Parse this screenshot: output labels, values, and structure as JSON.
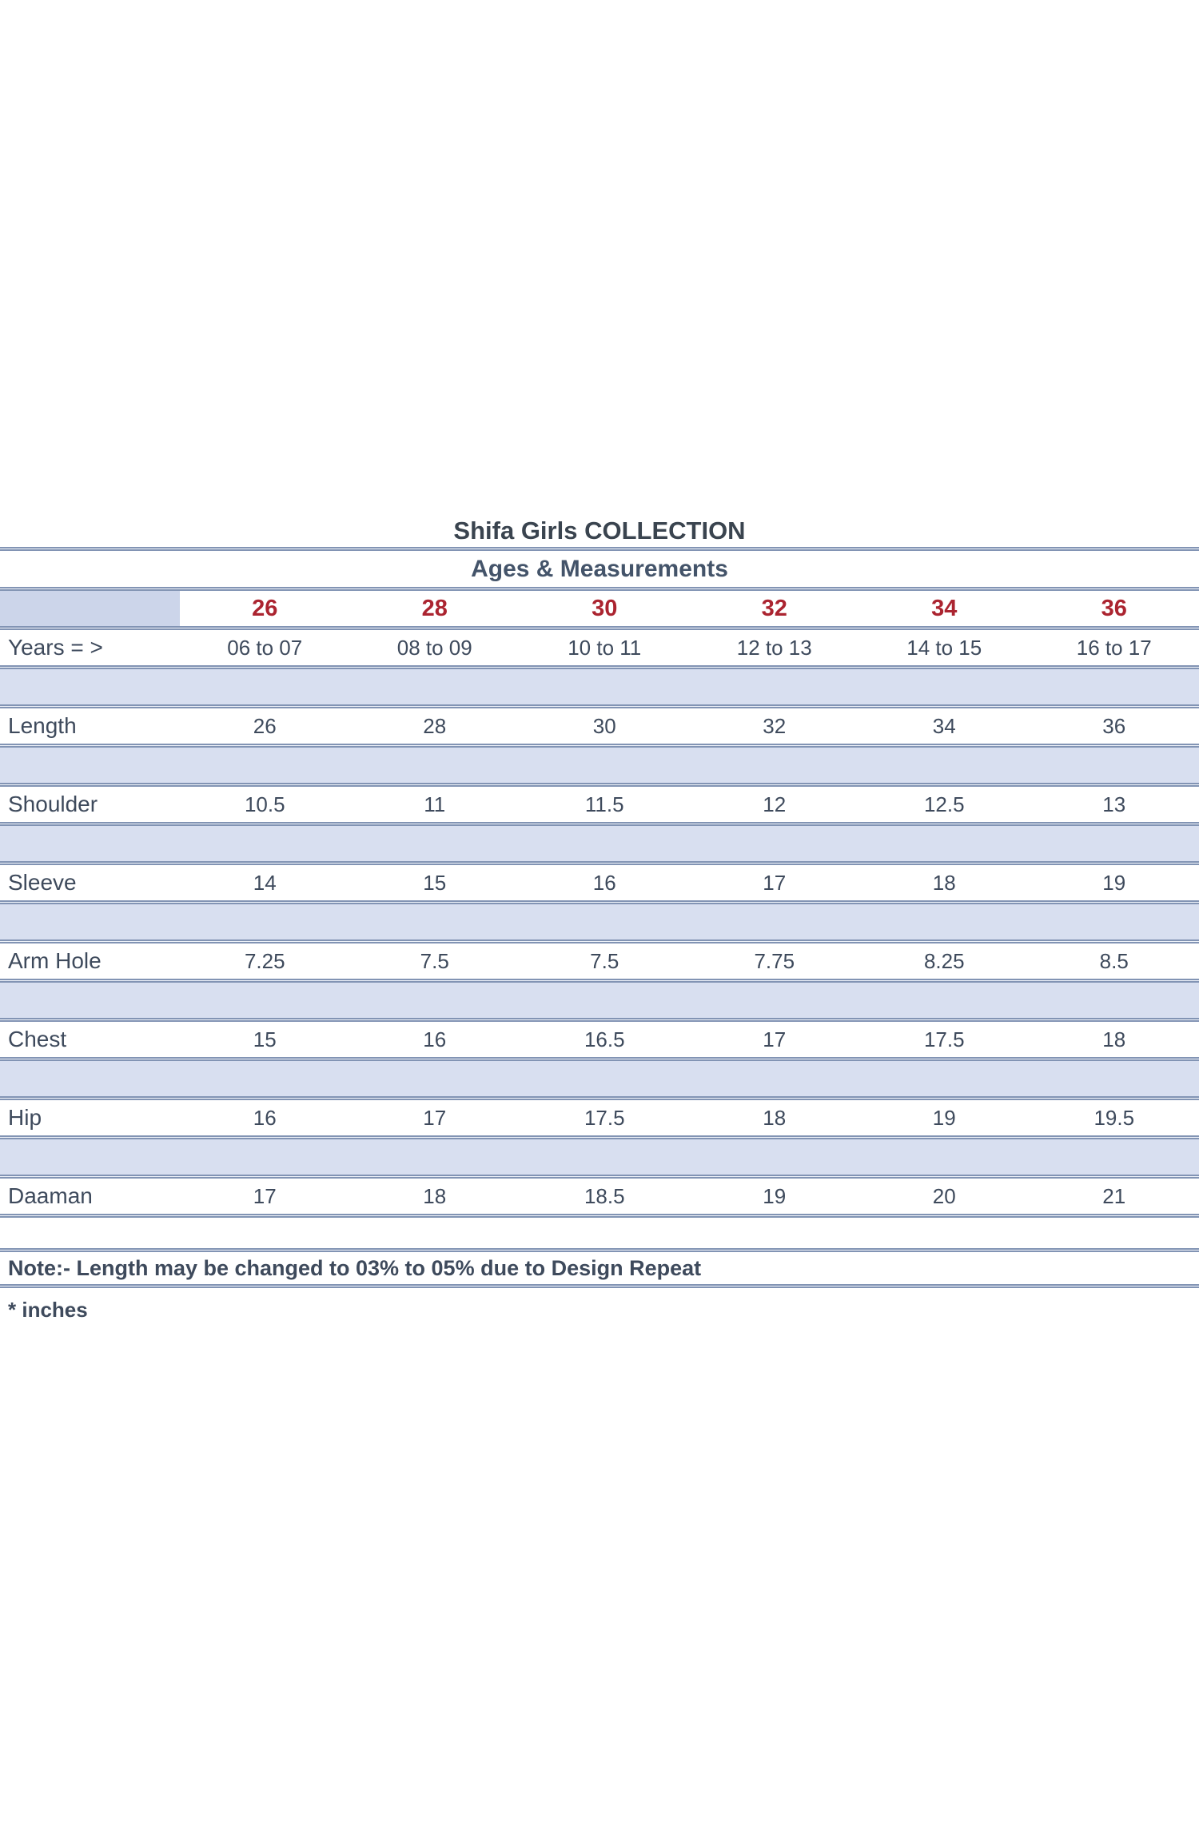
{
  "page": {
    "title": "Shifa Girls COLLECTION",
    "section_header": "Ages & Measurements",
    "note": "Note:- Length may be changed to 03% to 05% due to Design Repeat",
    "footnote": "* inches"
  },
  "colors": {
    "size_header_red": "#ab2430",
    "spacer_band_blue": "#d8dff0",
    "corner_cell_blue": "#ccd5ea",
    "rule_slate": "#8294b4",
    "text_dark_slate": "#3e4a5c",
    "section_header_blue_gray": "#44546a"
  },
  "table": {
    "sizes": [
      "26",
      "28",
      "30",
      "32",
      "34",
      "36"
    ],
    "years_label": "Years = >",
    "years": [
      "06 to 07",
      "08 to 09",
      "10 to 11",
      "12 to 13",
      "14 to 15",
      "16 to 17"
    ],
    "rows": [
      {
        "label": "Length",
        "values": [
          "26",
          "28",
          "30",
          "32",
          "34",
          "36"
        ]
      },
      {
        "label": "Shoulder",
        "values": [
          "10.5",
          "11",
          "11.5",
          "12",
          "12.5",
          "13"
        ]
      },
      {
        "label": "Sleeve",
        "values": [
          "14",
          "15",
          "16",
          "17",
          "18",
          "19"
        ]
      },
      {
        "label": "Arm Hole",
        "values": [
          "7.25",
          "7.5",
          "7.5",
          "7.75",
          "8.25",
          "8.5"
        ]
      },
      {
        "label": "Chest",
        "values": [
          "15",
          "16",
          "16.5",
          "17",
          "17.5",
          "18"
        ]
      },
      {
        "label": "Hip",
        "values": [
          "16",
          "17",
          "17.5",
          "18",
          "19",
          "19.5"
        ]
      },
      {
        "label": "Daaman",
        "values": [
          "17",
          "18",
          "18.5",
          "19",
          "20",
          "21"
        ]
      }
    ],
    "units": "inches"
  }
}
